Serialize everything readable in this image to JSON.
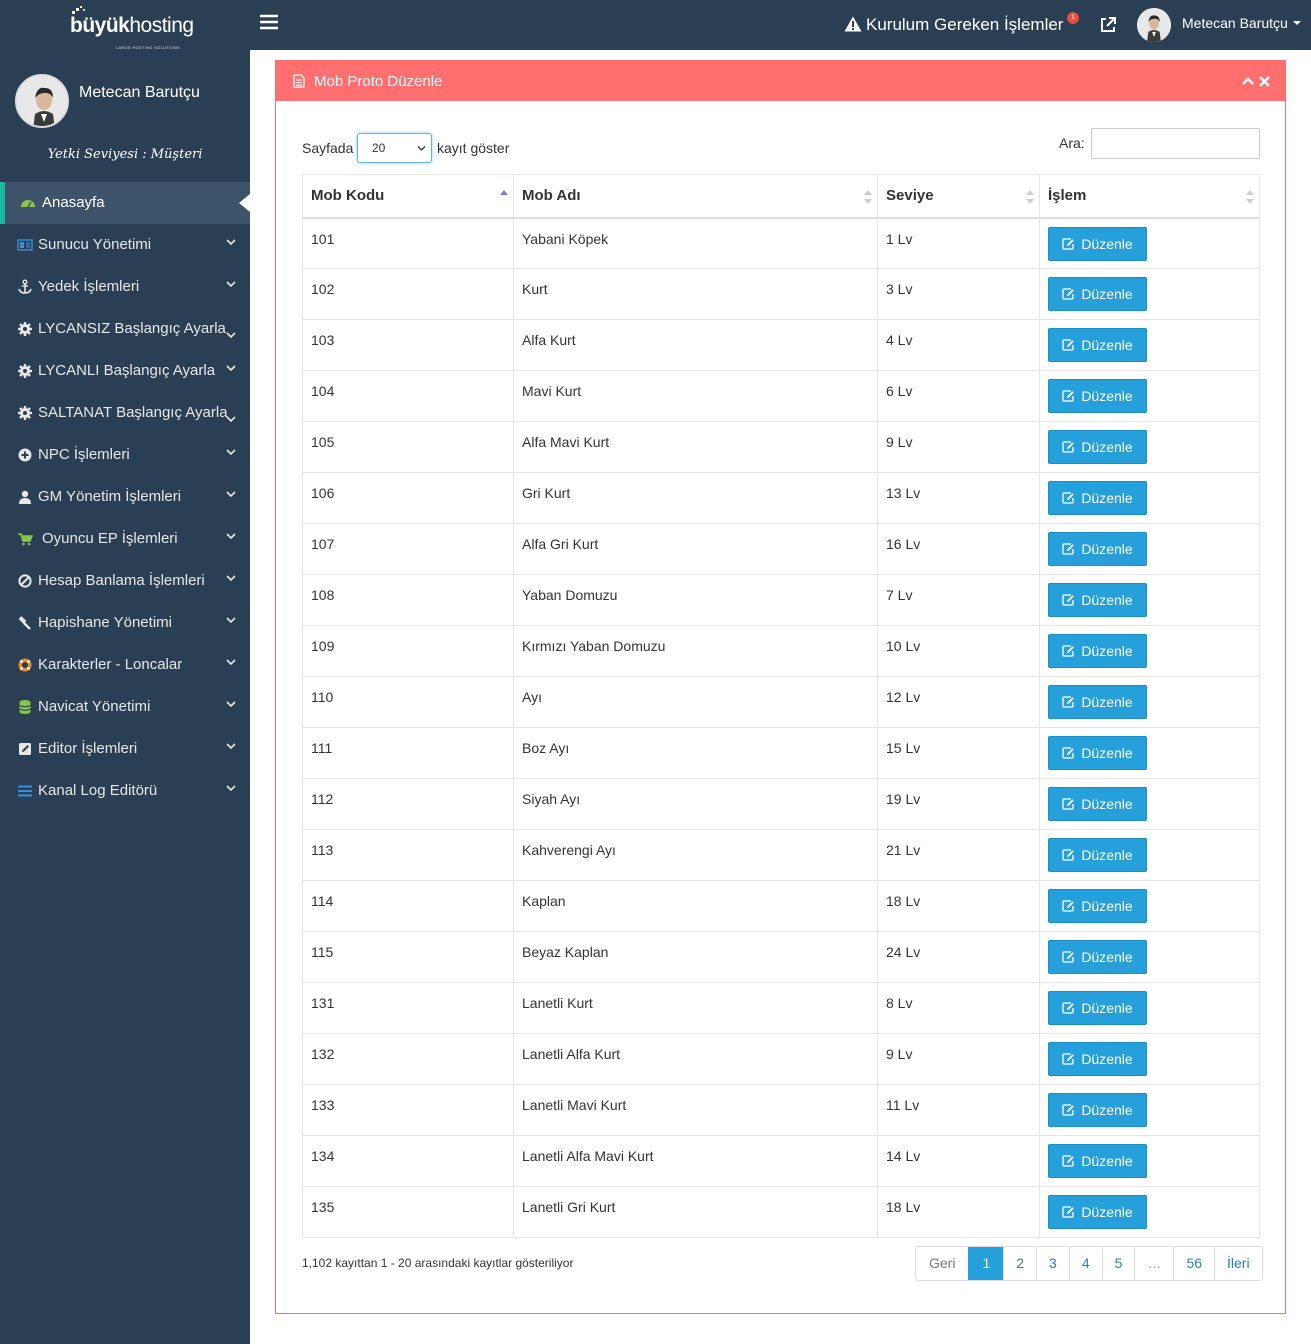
{
  "brand": {
    "logo_bold": "büyük",
    "logo_light": "hosting",
    "logo_tagline": "LARGE HOSTING SOLUTIONS"
  },
  "sidebar": {
    "profile_name": "Metecan Barutçu",
    "yetki": "Yetki Seviyesi : Müşteri",
    "items": [
      {
        "label": "Anasayfa",
        "icon": "dashboard-icon",
        "active": true
      },
      {
        "label": "Sunucu Yönetimi",
        "icon": "server-icon"
      },
      {
        "label": "Yedek İşlemleri",
        "icon": "anchor-icon"
      },
      {
        "label": "LYCANSIZ Başlangıç Ayarla",
        "icon": "gear-icon"
      },
      {
        "label": "LYCANLI Başlangıç Ayarla",
        "icon": "gear-icon"
      },
      {
        "label": "SALTANAT Başlangıç Ayarla",
        "icon": "gear-icon"
      },
      {
        "label": "NPC İşlemleri",
        "icon": "plus-circle-icon"
      },
      {
        "label": "GM Yönetim İşlemleri",
        "icon": "user-icon"
      },
      {
        "label": "Oyuncu EP İşlemleri",
        "icon": "cart-icon"
      },
      {
        "label": "Hesap Banlama İşlemleri",
        "icon": "ban-icon"
      },
      {
        "label": "Hapishane Yönetimi",
        "icon": "gavel-icon"
      },
      {
        "label": "Karakterler - Loncalar",
        "icon": "lifebuoy-icon"
      },
      {
        "label": "Navicat Yönetimi",
        "icon": "database-icon"
      },
      {
        "label": "Editor İşlemleri",
        "icon": "edit-icon"
      },
      {
        "label": "Kanal Log Editörü",
        "icon": "list-icon"
      }
    ]
  },
  "topbar": {
    "alert_label": "Kurulum Gereken İşlemler",
    "alert_count": "1",
    "user_name": "Metecan Barutçu"
  },
  "panel": {
    "title": "Mob Proto Düzenle",
    "length_prefix": "Sayfada",
    "length_value": "20",
    "length_suffix": "kayıt göster",
    "search_label": "Ara:",
    "search_value": "",
    "columns": [
      "Mob Kodu",
      "Mob Adı",
      "Seviye",
      "İşlem"
    ],
    "edit_label": "Düzenle",
    "rows": [
      {
        "code": "101",
        "name": "Yabani Köpek",
        "level": "1 Lv"
      },
      {
        "code": "102",
        "name": "Kurt",
        "level": "3 Lv"
      },
      {
        "code": "103",
        "name": "Alfa Kurt",
        "level": "4 Lv"
      },
      {
        "code": "104",
        "name": "Mavi Kurt",
        "level": "6 Lv"
      },
      {
        "code": "105",
        "name": "Alfa Mavi Kurt",
        "level": "9 Lv"
      },
      {
        "code": "106",
        "name": "Gri Kurt",
        "level": "13 Lv"
      },
      {
        "code": "107",
        "name": "Alfa Gri Kurt",
        "level": "16 Lv"
      },
      {
        "code": "108",
        "name": "Yaban Domuzu",
        "level": "7 Lv"
      },
      {
        "code": "109",
        "name": "Kırmızı Yaban Domuzu",
        "level": "10 Lv"
      },
      {
        "code": "110",
        "name": "Ayı",
        "level": "12 Lv"
      },
      {
        "code": "111",
        "name": "Boz Ayı",
        "level": "15 Lv"
      },
      {
        "code": "112",
        "name": "Siyah Ayı",
        "level": "19 Lv"
      },
      {
        "code": "113",
        "name": "Kahverengi Ayı",
        "level": "21 Lv"
      },
      {
        "code": "114",
        "name": "Kaplan",
        "level": "18 Lv"
      },
      {
        "code": "115",
        "name": "Beyaz Kaplan",
        "level": "24 Lv"
      },
      {
        "code": "131",
        "name": "Lanetli Kurt",
        "level": "8 Lv"
      },
      {
        "code": "132",
        "name": "Lanetli Alfa Kurt",
        "level": "9 Lv"
      },
      {
        "code": "133",
        "name": "Lanetli Mavi Kurt",
        "level": "11 Lv"
      },
      {
        "code": "134",
        "name": "Lanetli Alfa Mavi Kurt",
        "level": "14 Lv"
      },
      {
        "code": "135",
        "name": "Lanetli Gri Kurt",
        "level": "18 Lv"
      }
    ],
    "info": "1,102 kayıttan 1 - 20 arasındaki kayıtlar gösteriliyor",
    "pagination": [
      "Geri",
      "1",
      "2",
      "3",
      "4",
      "5",
      "…",
      "56",
      "İleri"
    ],
    "current_page": "1"
  },
  "colors": {
    "sidebar_bg": "#2a3f54",
    "panel_header": "#ff6f6f",
    "button_blue": "#26a0da",
    "active_accent": "#1abb9c"
  }
}
